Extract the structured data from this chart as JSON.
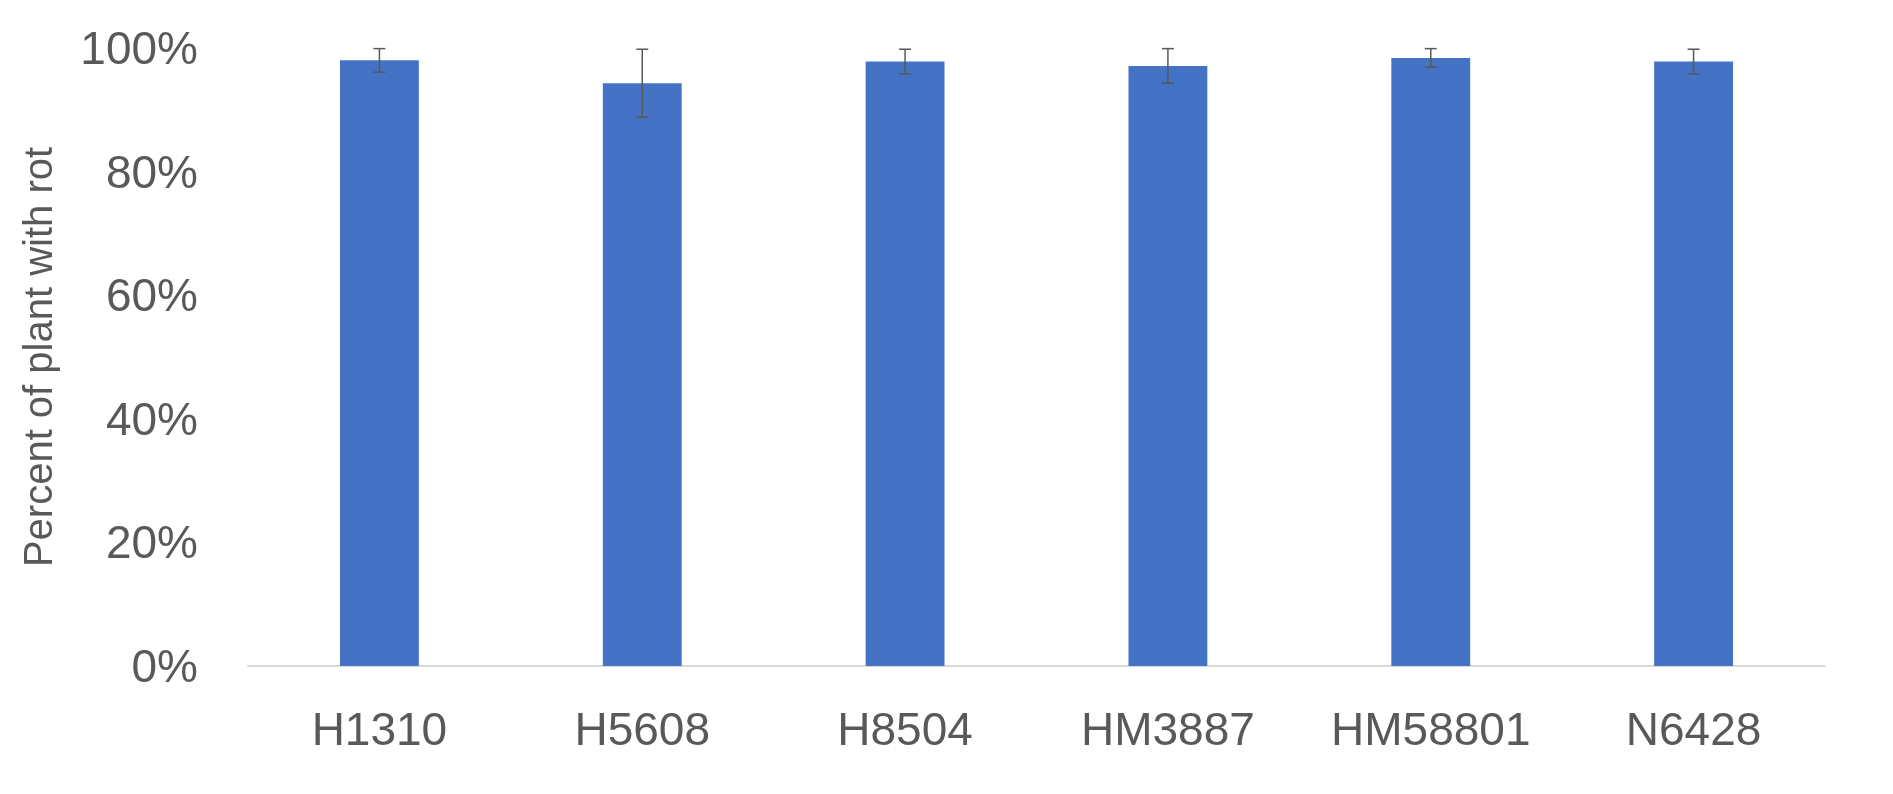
{
  "chart_data": {
    "type": "bar",
    "ylabel": "Percent of plant with rot",
    "categories": [
      "H1310",
      "H5608",
      "H8504",
      "HM3887",
      "HM58801",
      "N6428"
    ],
    "values": [
      98,
      94.3,
      97.8,
      97.1,
      98.4,
      97.8
    ],
    "errors": [
      1.9,
      5.5,
      2,
      2.8,
      1.5,
      2
    ],
    "color": "#4472c4",
    "ylim": [
      0,
      100
    ],
    "yticks": [
      {
        "value": 0,
        "label": "0%"
      },
      {
        "value": 20,
        "label": "20%"
      },
      {
        "value": 40,
        "label": "40%"
      },
      {
        "value": 60,
        "label": "60%"
      },
      {
        "value": 80,
        "label": "80%"
      },
      {
        "value": 100,
        "label": "100%"
      }
    ],
    "grid": false
  }
}
